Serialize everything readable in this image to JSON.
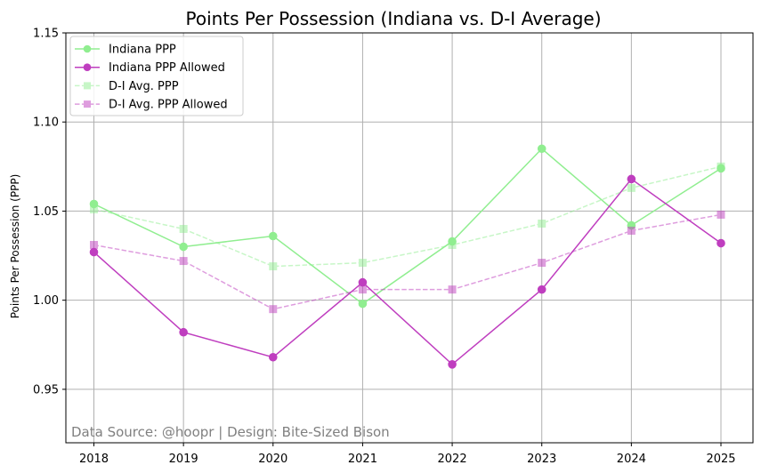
{
  "chart_data": {
    "type": "line",
    "title": "Points Per Possession (Indiana vs. D-I Average)",
    "xlabel": "",
    "ylabel": "Points Per Possession (PPP)",
    "categories": [
      "2018",
      "2019",
      "2020",
      "2021",
      "2022",
      "2023",
      "2024",
      "2025"
    ],
    "ylim": [
      0.92,
      1.15
    ],
    "yticks": [
      0.95,
      1.0,
      1.05,
      1.1,
      1.15
    ],
    "ytick_labels": [
      "0.95",
      "1.00",
      "1.05",
      "1.10",
      "1.15"
    ],
    "grid": true,
    "legend_position": "top-left",
    "series": [
      {
        "name": "Indiana PPP",
        "values": [
          1.054,
          1.03,
          1.036,
          0.998,
          1.033,
          1.085,
          1.042,
          1.074
        ],
        "color": "#90ee90",
        "marker": "circle",
        "dashed": false,
        "alpha": 1.0
      },
      {
        "name": "Indiana PPP Allowed",
        "values": [
          1.027,
          0.982,
          0.968,
          1.01,
          0.964,
          1.006,
          1.068,
          1.032
        ],
        "color": "#bf3ebf",
        "marker": "circle",
        "dashed": false,
        "alpha": 1.0
      },
      {
        "name": "D-I Avg. PPP",
        "values": [
          1.051,
          1.04,
          1.019,
          1.021,
          1.031,
          1.043,
          1.063,
          1.075
        ],
        "color": "#90ee90",
        "marker": "square",
        "dashed": true,
        "alpha": 0.5
      },
      {
        "name": "D-I Avg. PPP Allowed",
        "values": [
          1.031,
          1.022,
          0.995,
          1.006,
          1.006,
          1.021,
          1.039,
          1.048
        ],
        "color": "#bf3ebf",
        "marker": "square",
        "dashed": true,
        "alpha": 0.5
      }
    ],
    "annotation": "Data Source: @hoopr | Design: Bite-Sized Bison"
  }
}
